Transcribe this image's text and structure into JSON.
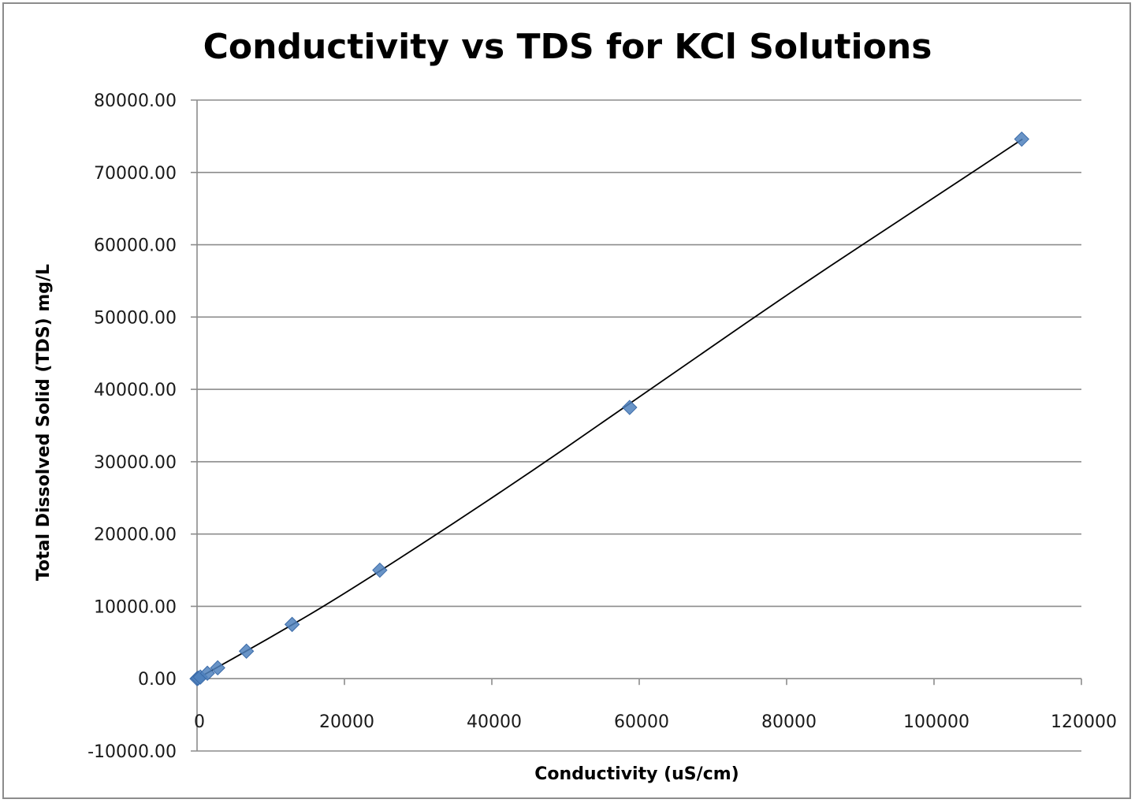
{
  "chart_data": {
    "type": "scatter",
    "title": "Conductivity vs TDS for KCl Solutions",
    "xlabel": "Conductivity  (uS/cm)",
    "ylabel": "Total Dissolved  Solid  (TDS)  mg/L",
    "xlim": [
      0,
      120000
    ],
    "ylim": [
      -10000,
      80000
    ],
    "x_ticks": [
      0,
      20000,
      40000,
      60000,
      80000,
      100000,
      120000
    ],
    "x_tick_labels": [
      "0",
      "20000",
      "40000",
      "60000",
      "80000",
      "100000",
      "120000"
    ],
    "y_ticks": [
      -10000,
      0,
      10000,
      20000,
      30000,
      40000,
      50000,
      60000,
      70000,
      80000
    ],
    "y_tick_labels": [
      "-10000.00",
      "0.00",
      "10000.00",
      "20000.00",
      "30000.00",
      "40000.00",
      "50000.00",
      "60000.00",
      "70000.00",
      "80000.00"
    ],
    "grid": "horizontal",
    "legend": "none",
    "marker_color": "#4f81bd",
    "trendline_color": "#000000",
    "series": [
      {
        "marker": "diamond",
        "points": [
          {
            "x": 0,
            "y": 0
          },
          {
            "x": 150,
            "y": 75
          },
          {
            "x": 450,
            "y": 220
          },
          {
            "x": 1400,
            "y": 750
          },
          {
            "x": 2800,
            "y": 1500
          },
          {
            "x": 6700,
            "y": 3800
          },
          {
            "x": 12900,
            "y": 7500
          },
          {
            "x": 24800,
            "y": 15000
          },
          {
            "x": 58700,
            "y": 37500
          },
          {
            "x": 111900,
            "y": 74600
          }
        ]
      }
    ],
    "trendline": [
      {
        "x": 0,
        "y": 0
      },
      {
        "x": 10000,
        "y": 5700
      },
      {
        "x": 20000,
        "y": 11700
      },
      {
        "x": 40000,
        "y": 24900
      },
      {
        "x": 60000,
        "y": 38900
      },
      {
        "x": 80000,
        "y": 53100
      },
      {
        "x": 100000,
        "y": 66500
      },
      {
        "x": 112000,
        "y": 74600
      }
    ]
  }
}
